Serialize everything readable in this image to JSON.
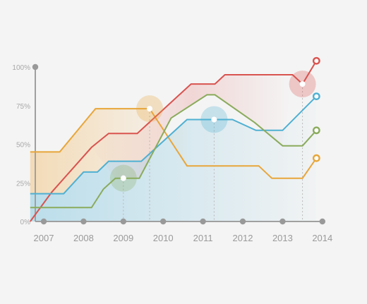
{
  "chart_data": {
    "type": "line",
    "title": "",
    "xlabel": "",
    "ylabel": "",
    "categories": [
      "2007",
      "2008",
      "2009",
      "2010",
      "2011",
      "2012",
      "2013",
      "2014"
    ],
    "y_tick_labels": [
      "0%",
      "25%",
      "50%",
      "75%",
      "100%"
    ],
    "ylim": [
      0,
      100
    ],
    "grid": false,
    "legend": "none",
    "series": [
      {
        "color": "#e8a63a",
        "x": [
          2006.66,
          2007.4,
          2008.3,
          2009.3,
          2009.66,
          2010.6,
          2011.5,
          2012.4,
          2012.73,
          2013.5,
          2013.85
        ],
        "y": [
          45,
          45,
          73,
          73,
          73,
          36,
          36,
          36,
          28,
          28,
          41
        ]
      },
      {
        "color": "#d9534f",
        "x": [
          2006.66,
          2007.2,
          2008.2,
          2008.63,
          2009.35,
          2010.7,
          2011.3,
          2011.55,
          2012.33,
          2013.25,
          2013.5,
          2013.85
        ],
        "y": [
          0,
          19,
          48,
          57,
          57,
          89,
          89,
          95,
          95,
          95,
          89,
          104
        ]
      },
      {
        "color": "#4fb0d2",
        "x": [
          2006.66,
          2007.5,
          2008.0,
          2008.35,
          2008.63,
          2009.45,
          2010.6,
          2011.35,
          2011.74,
          2012.33,
          2013.0,
          2013.85
        ],
        "y": [
          18,
          18,
          32,
          32,
          39,
          39,
          66,
          66,
          66,
          59,
          59,
          81
        ]
      },
      {
        "color": "#8aab5c",
        "x": [
          2006.66,
          2008.2,
          2008.5,
          2008.8,
          2009.4,
          2010.2,
          2011.1,
          2011.3,
          2012.3,
          2013.0,
          2013.5,
          2013.85
        ],
        "y": [
          9,
          9,
          21,
          28,
          28,
          67,
          82,
          82,
          64,
          49,
          49,
          59
        ]
      }
    ],
    "highlights": [
      {
        "x": 2009.66,
        "y": 73,
        "color": "#e8a63a"
      },
      {
        "x": 2011.28,
        "y": 66,
        "color": "#4fb0d2"
      },
      {
        "x": 2013.5,
        "y": 89,
        "color": "#d9534f"
      },
      {
        "x": 2009.0,
        "y": 28,
        "color": "#8aab5c"
      }
    ]
  }
}
